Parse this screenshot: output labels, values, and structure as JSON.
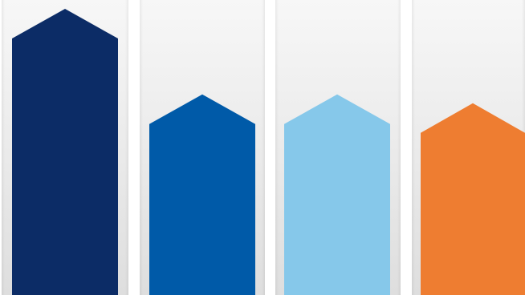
{
  "arrows": [
    {
      "name": "arrow-1",
      "color": "#0c2c66",
      "level": 0.97
    },
    {
      "name": "arrow-2",
      "color": "#005aa8",
      "level": 0.68
    },
    {
      "name": "arrow-3",
      "color": "#86c8ea",
      "level": 0.68
    },
    {
      "name": "arrow-4",
      "color": "#ee7d31",
      "level": 0.65
    }
  ]
}
